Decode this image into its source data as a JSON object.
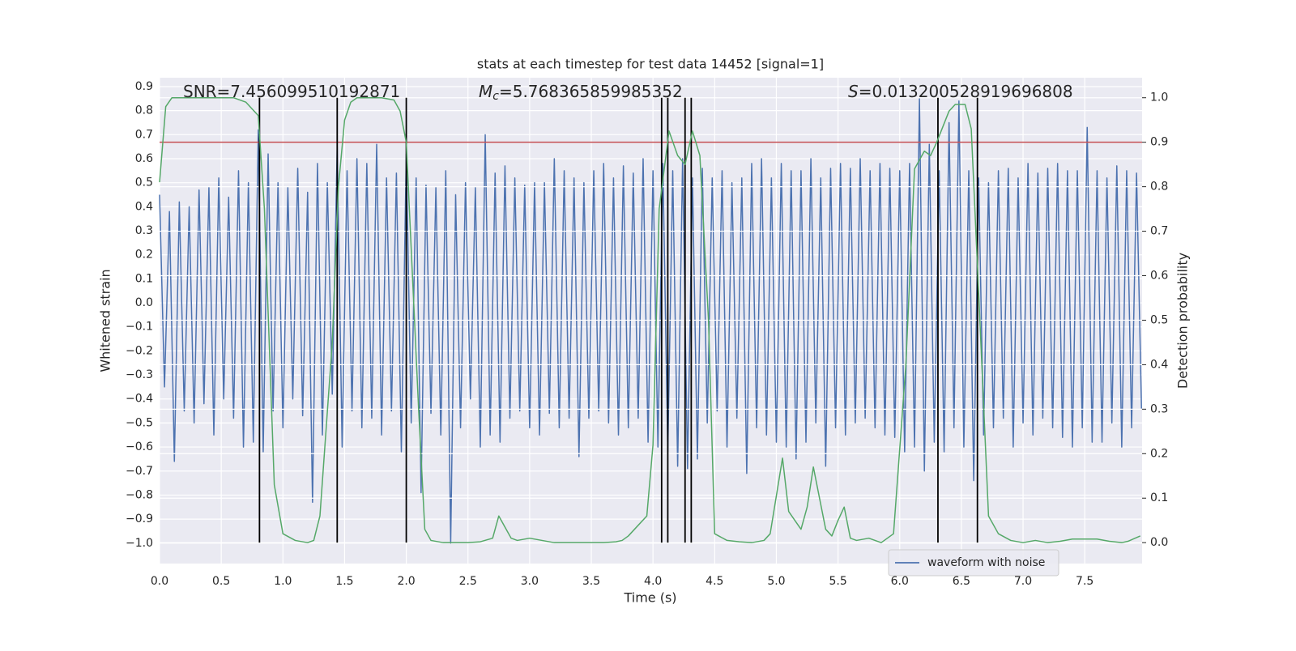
{
  "chart_data": {
    "type": "line",
    "title": "stats at each timestep for test data 14452 [signal=1]",
    "x_label": "Time (s)",
    "y_label": "Whitened strain",
    "y2_label": "Detection probability",
    "annotations": [
      {
        "text": "SNR=7.456099510192871"
      },
      {
        "symbol": "M",
        "subscript": "c",
        "text": "=5.768365859985352"
      },
      {
        "symbol": "S",
        "text": "=0.013200528919696808"
      }
    ],
    "xlim": [
      0,
      7.965
    ],
    "ylim": [
      -1.085,
      0.937
    ],
    "y2lim": [
      -0.047,
      1.045
    ],
    "xticks": [
      {
        "value": 0,
        "label": "0.0"
      },
      {
        "value": 0.5,
        "label": "0.5"
      },
      {
        "value": 1,
        "label": "1.0"
      },
      {
        "value": 1.5,
        "label": "1.5"
      },
      {
        "value": 2,
        "label": "2.0"
      },
      {
        "value": 2.5,
        "label": "2.5"
      },
      {
        "value": 3,
        "label": "3.0"
      },
      {
        "value": 3.5,
        "label": "3.5"
      },
      {
        "value": 4,
        "label": "4.0"
      },
      {
        "value": 4.5,
        "label": "4.5"
      },
      {
        "value": 5,
        "label": "5.0"
      },
      {
        "value": 5.5,
        "label": "5.5"
      },
      {
        "value": 6,
        "label": "6.0"
      },
      {
        "value": 6.5,
        "label": "6.5"
      },
      {
        "value": 7,
        "label": "7.0"
      },
      {
        "value": 7.5,
        "label": "7.5"
      }
    ],
    "yticks": [
      {
        "value": -1,
        "label": "−1.0"
      },
      {
        "value": -0.9,
        "label": "−0.9"
      },
      {
        "value": -0.8,
        "label": "−0.8"
      },
      {
        "value": -0.7,
        "label": "−0.7"
      },
      {
        "value": -0.6,
        "label": "−0.6"
      },
      {
        "value": -0.5,
        "label": "−0.5"
      },
      {
        "value": -0.4,
        "label": "−0.4"
      },
      {
        "value": -0.3,
        "label": "−0.3"
      },
      {
        "value": -0.2,
        "label": "−0.2"
      },
      {
        "value": -0.1,
        "label": "−0.1"
      },
      {
        "value": 0,
        "label": "0.0"
      },
      {
        "value": 0.1,
        "label": "0.1"
      },
      {
        "value": 0.2,
        "label": "0.2"
      },
      {
        "value": 0.3,
        "label": "0.3"
      },
      {
        "value": 0.4,
        "label": "0.4"
      },
      {
        "value": 0.5,
        "label": "0.5"
      },
      {
        "value": 0.6,
        "label": "0.6"
      },
      {
        "value": 0.7,
        "label": "0.7"
      },
      {
        "value": 0.8,
        "label": "0.8"
      },
      {
        "value": 0.9,
        "label": "0.9"
      }
    ],
    "y2ticks": [
      {
        "value": 0,
        "label": "0.0"
      },
      {
        "value": 0.1,
        "label": "0.1"
      },
      {
        "value": 0.2,
        "label": "0.2"
      },
      {
        "value": 0.3,
        "label": "0.3"
      },
      {
        "value": 0.4,
        "label": "0.4"
      },
      {
        "value": 0.5,
        "label": "0.5"
      },
      {
        "value": 0.6,
        "label": "0.6"
      },
      {
        "value": 0.7,
        "label": "0.7"
      },
      {
        "value": 0.8,
        "label": "0.8"
      },
      {
        "value": 0.9,
        "label": "0.9"
      },
      {
        "value": 1,
        "label": "1.0"
      }
    ],
    "grid": true,
    "legend": "lower right",
    "series": [
      {
        "name": "waveform with noise",
        "color": "#4c72b0",
        "x": [
          0,
          0.04,
          0.08,
          0.12,
          0.16,
          0.2,
          0.24,
          0.28,
          0.32,
          0.36,
          0.4,
          0.44,
          0.48,
          0.52,
          0.56,
          0.6,
          0.64,
          0.68,
          0.72,
          0.76,
          0.8,
          0.84,
          0.88,
          0.92,
          0.96,
          1,
          1.04,
          1.08,
          1.12,
          1.16,
          1.2,
          1.24,
          1.28,
          1.32,
          1.36,
          1.4,
          1.44,
          1.48,
          1.52,
          1.56,
          1.6,
          1.64,
          1.68,
          1.72,
          1.76,
          1.8,
          1.84,
          1.88,
          1.92,
          1.96,
          2,
          2.04,
          2.08,
          2.12,
          2.16,
          2.2,
          2.24,
          2.28,
          2.32,
          2.36,
          2.4,
          2.44,
          2.48,
          2.52,
          2.56,
          2.6,
          2.64,
          2.68,
          2.72,
          2.76,
          2.8,
          2.84,
          2.88,
          2.92,
          2.96,
          3,
          3.04,
          3.08,
          3.12,
          3.16,
          3.2,
          3.24,
          3.28,
          3.32,
          3.36,
          3.4,
          3.44,
          3.48,
          3.52,
          3.56,
          3.6,
          3.64,
          3.68,
          3.72,
          3.76,
          3.8,
          3.84,
          3.88,
          3.92,
          3.96,
          4,
          4.04,
          4.08,
          4.12,
          4.16,
          4.2,
          4.24,
          4.28,
          4.32,
          4.36,
          4.4,
          4.44,
          4.48,
          4.52,
          4.56,
          4.6,
          4.64,
          4.68,
          4.72,
          4.76,
          4.8,
          4.84,
          4.88,
          4.92,
          4.96,
          5,
          5.04,
          5.08,
          5.12,
          5.16,
          5.2,
          5.24,
          5.28,
          5.32,
          5.36,
          5.4,
          5.44,
          5.48,
          5.52,
          5.56,
          5.6,
          5.64,
          5.68,
          5.72,
          5.76,
          5.8,
          5.84,
          5.88,
          5.92,
          5.96,
          6,
          6.04,
          6.08,
          6.12,
          6.16,
          6.2,
          6.24,
          6.28,
          6.32,
          6.36,
          6.4,
          6.44,
          6.48,
          6.52,
          6.56,
          6.6,
          6.64,
          6.68,
          6.72,
          6.76,
          6.8,
          6.84,
          6.88,
          6.92,
          6.96,
          7,
          7.04,
          7.08,
          7.12,
          7.16,
          7.2,
          7.24,
          7.28,
          7.32,
          7.36,
          7.4,
          7.44,
          7.48,
          7.52,
          7.56,
          7.6,
          7.64,
          7.68,
          7.72,
          7.76,
          7.8,
          7.84,
          7.88,
          7.92,
          7.96
        ],
        "values": [
          0.45,
          -0.35,
          0.38,
          -0.66,
          0.42,
          -0.45,
          0.4,
          -0.5,
          0.47,
          -0.42,
          0.48,
          -0.55,
          0.52,
          -0.4,
          0.44,
          -0.48,
          0.55,
          -0.6,
          0.5,
          -0.58,
          0.72,
          -0.62,
          0.62,
          -0.45,
          0.5,
          -0.52,
          0.48,
          -0.4,
          0.56,
          -0.47,
          0.46,
          -0.83,
          0.58,
          -0.55,
          0.5,
          -0.38,
          0.65,
          -0.6,
          0.55,
          -0.45,
          0.6,
          -0.52,
          0.58,
          -0.48,
          0.66,
          -0.55,
          0.52,
          -0.45,
          0.54,
          -0.62,
          0.62,
          -0.5,
          0.52,
          -0.79,
          0.49,
          -0.46,
          0.48,
          -0.55,
          0.55,
          -1.0,
          0.45,
          -0.52,
          0.5,
          -0.4,
          0.48,
          -0.6,
          0.7,
          -0.55,
          0.54,
          -0.58,
          0.57,
          -0.48,
          0.52,
          -0.45,
          0.49,
          -0.52,
          0.5,
          -0.55,
          0.5,
          -0.46,
          0.6,
          -0.52,
          0.55,
          -0.48,
          0.52,
          -0.64,
          0.5,
          -0.48,
          0.55,
          -0.45,
          0.58,
          -0.5,
          0.52,
          -0.55,
          0.57,
          -0.52,
          0.54,
          -0.48,
          0.6,
          -0.58,
          0.55,
          -0.6,
          0.58,
          -0.62,
          0.55,
          -0.68,
          0.6,
          -0.69,
          0.52,
          -0.65,
          0.56,
          -0.5,
          0.52,
          -0.45,
          0.55,
          -0.6,
          0.5,
          -0.48,
          0.52,
          -0.71,
          0.58,
          -0.52,
          0.6,
          -0.55,
          0.52,
          -0.58,
          0.58,
          -0.6,
          0.55,
          -0.65,
          0.55,
          -0.58,
          0.6,
          -0.5,
          0.52,
          -0.68,
          0.56,
          -0.52,
          0.58,
          -0.55,
          0.56,
          -0.5,
          0.6,
          -0.48,
          0.55,
          -0.52,
          0.58,
          -0.55,
          0.56,
          -0.56,
          0.55,
          -0.62,
          0.58,
          -0.6,
          0.85,
          -0.7,
          0.66,
          -0.58,
          0.55,
          -0.62,
          0.75,
          -0.52,
          0.84,
          -0.6,
          0.55,
          -0.74,
          0.52,
          -0.55,
          0.5,
          -0.52,
          0.55,
          -0.48,
          0.56,
          -0.6,
          0.52,
          -0.5,
          0.58,
          -0.55,
          0.54,
          -0.48,
          0.56,
          -0.52,
          0.58,
          -0.56,
          0.55,
          -0.6,
          0.55,
          -0.52,
          0.73,
          -0.58,
          0.55,
          -0.58,
          0.52,
          -0.5,
          0.57,
          -0.6,
          0.55,
          -0.52,
          0.54,
          -0.44
        ]
      },
      {
        "color": "#55a868",
        "axis": "y2",
        "x": [
          0,
          0.05,
          0.1,
          0.2,
          0.3,
          0.4,
          0.5,
          0.6,
          0.7,
          0.8,
          0.85,
          0.93,
          1,
          1.1,
          1.2,
          1.25,
          1.3,
          1.4,
          1.45,
          1.5,
          1.55,
          1.6,
          1.7,
          1.8,
          1.9,
          1.95,
          2,
          2.1,
          2.15,
          2.2,
          2.3,
          2.4,
          2.5,
          2.6,
          2.7,
          2.75,
          2.8,
          2.85,
          2.9,
          3,
          3.1,
          3.2,
          3.3,
          3.4,
          3.5,
          3.6,
          3.7,
          3.75,
          3.8,
          3.85,
          3.95,
          4,
          4.05,
          4.13,
          4.2,
          4.26,
          4.32,
          4.38,
          4.45,
          4.5,
          4.6,
          4.7,
          4.8,
          4.9,
          4.95,
          5.05,
          5.1,
          5.2,
          5.25,
          5.3,
          5.4,
          5.45,
          5.5,
          5.55,
          5.6,
          5.65,
          5.75,
          5.85,
          5.95,
          6.05,
          6.12,
          6.2,
          6.25,
          6.3,
          6.4,
          6.45,
          6.53,
          6.58,
          6.65,
          6.72,
          6.8,
          6.9,
          7,
          7.1,
          7.2,
          7.3,
          7.4,
          7.5,
          7.6,
          7.7,
          7.8,
          7.85,
          7.95
        ],
        "values": [
          0.81,
          0.98,
          1.0,
          1.0,
          1.0,
          1.0,
          1.0,
          1.0,
          0.99,
          0.96,
          0.75,
          0.13,
          0.02,
          0.005,
          0.0,
          0.005,
          0.06,
          0.45,
          0.8,
          0.95,
          0.99,
          1.0,
          1.0,
          1.0,
          0.995,
          0.97,
          0.9,
          0.3,
          0.03,
          0.005,
          0.0,
          0.0,
          0.0,
          0.002,
          0.01,
          0.06,
          0.035,
          0.01,
          0.005,
          0.01,
          0.005,
          0.0,
          0.0,
          0.0,
          0.0,
          0.0,
          0.002,
          0.005,
          0.015,
          0.03,
          0.06,
          0.22,
          0.75,
          0.925,
          0.87,
          0.85,
          0.925,
          0.87,
          0.5,
          0.02,
          0.005,
          0.002,
          0.0,
          0.005,
          0.02,
          0.19,
          0.07,
          0.03,
          0.08,
          0.17,
          0.03,
          0.015,
          0.05,
          0.08,
          0.01,
          0.005,
          0.01,
          0.0,
          0.02,
          0.4,
          0.84,
          0.88,
          0.87,
          0.9,
          0.97,
          0.985,
          0.985,
          0.93,
          0.5,
          0.06,
          0.02,
          0.005,
          0.0,
          0.005,
          0.0,
          0.003,
          0.008,
          0.008,
          0.008,
          0.003,
          0.0,
          0.003,
          0.015
        ]
      }
    ],
    "threshold": {
      "axis": "y2",
      "value": 0.9,
      "color": "#c44e52"
    },
    "vlines": {
      "axis": "y2",
      "color": "#000000",
      "ymin": 0,
      "ymax": 1,
      "x": [
        0.81,
        1.44,
        2.0,
        4.07,
        4.12,
        4.26,
        4.31,
        6.31,
        6.63
      ]
    }
  }
}
